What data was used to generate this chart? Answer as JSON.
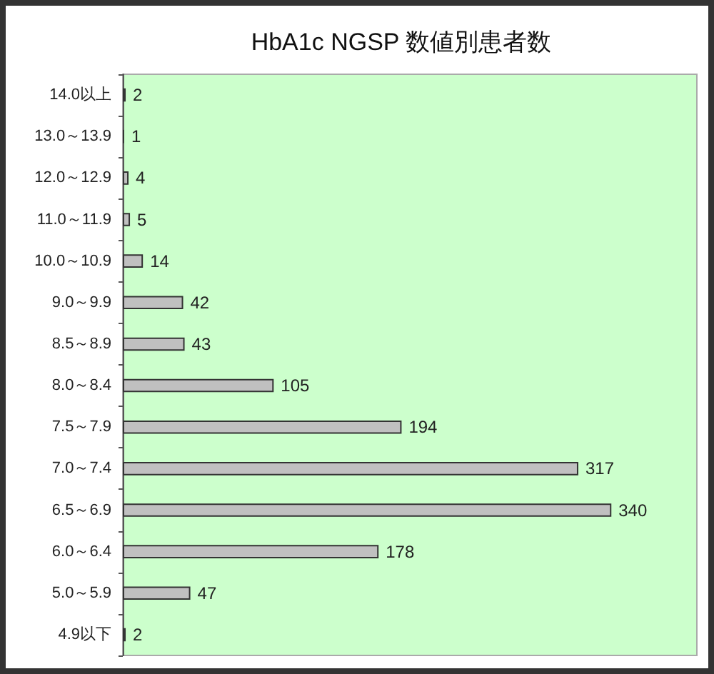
{
  "chart_data": {
    "type": "bar",
    "title": "HbA1c NGSP 数値別患者数",
    "orientation": "horizontal",
    "categories": [
      "14.0以上",
      "13.0～13.9",
      "12.0～12.9",
      "11.0～11.9",
      "10.0～10.9",
      "9.0～9.9",
      "8.5～8.9",
      "8.0～8.4",
      "7.5～7.9",
      "7.0～7.4",
      "6.5～6.9",
      "6.0～6.4",
      "5.0～5.9",
      "4.9以下"
    ],
    "values": [
      2,
      1,
      4,
      5,
      14,
      42,
      43,
      105,
      194,
      317,
      340,
      178,
      47,
      2
    ],
    "color": "#c0c0c0",
    "data_labels": true,
    "tick_labels": "y",
    "grid": false
  }
}
